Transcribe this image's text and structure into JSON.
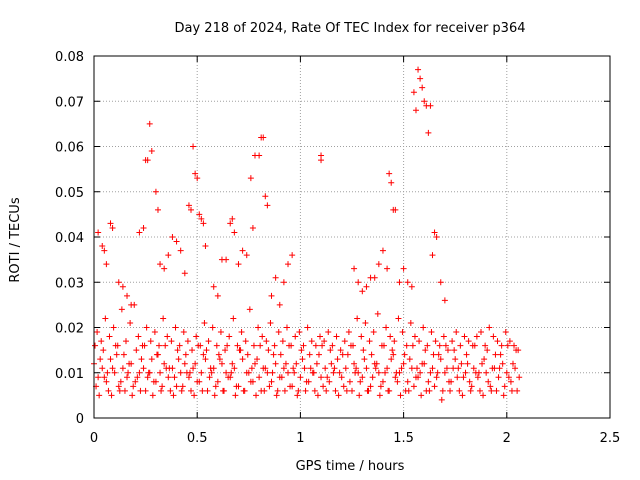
{
  "chart_data": {
    "type": "scatter",
    "title": "Day 218 of 2024, Rate Of TEC Index for receiver p364",
    "xlabel": "GPS time / hours",
    "ylabel": "ROTI / TECUs",
    "xlim": [
      0,
      2.5
    ],
    "ylim": [
      0,
      0.08
    ],
    "xticks": [
      0,
      0.5,
      1,
      1.5,
      2,
      2.5
    ],
    "xtick_labels": [
      "0",
      "0.5",
      "1",
      "1.5",
      "2",
      "2.5"
    ],
    "yticks": [
      0,
      0.01,
      0.02,
      0.03,
      0.04,
      0.05,
      0.06,
      0.07,
      0.08
    ],
    "ytick_labels": [
      "0",
      "0.01",
      "0.02",
      "0.03",
      "0.04",
      "0.05",
      "0.06",
      "0.07",
      "0.08"
    ],
    "grid": true,
    "marker": "+",
    "marker_color": "#ff0000",
    "series": [
      {
        "name": "ROTI",
        "x": [
          0.0,
          0.02,
          0.04,
          0.06,
          0.08,
          0.1,
          0.12,
          0.14,
          0.16,
          0.18,
          0.2,
          0.22,
          0.24,
          0.26,
          0.28,
          0.3,
          0.32,
          0.34,
          0.36,
          0.38,
          0.4,
          0.42,
          0.44,
          0.46,
          0.48,
          0.5,
          0.52,
          0.54,
          0.56,
          0.58,
          0.6,
          0.62,
          0.64,
          0.66,
          0.68,
          0.7,
          0.72,
          0.74,
          0.76,
          0.78,
          0.8,
          0.82,
          0.84,
          0.86,
          0.88,
          0.9,
          0.92,
          0.94,
          0.96,
          0.98,
          1.0,
          1.02,
          1.04,
          1.06,
          1.08,
          1.1,
          1.12,
          1.14,
          1.16,
          1.18,
          1.2,
          1.22,
          1.24,
          1.26,
          1.28,
          1.3,
          1.32,
          1.34,
          1.36,
          1.38,
          1.4,
          1.42,
          1.44,
          1.46,
          1.48,
          1.5,
          1.52,
          1.54,
          1.56,
          1.58,
          1.6,
          1.62,
          1.64,
          1.66,
          1.68,
          1.7,
          1.72,
          1.74,
          1.76,
          1.78,
          1.8,
          1.82,
          1.84,
          1.86,
          1.88,
          1.9,
          1.92,
          1.94,
          1.96,
          1.98,
          2.0,
          2.02,
          2.04,
          2.06,
          0.01,
          0.03,
          0.05,
          0.07,
          0.09,
          0.11,
          0.13,
          0.15,
          0.17,
          0.19,
          0.21,
          0.23,
          0.25,
          0.27,
          0.29,
          0.31,
          0.33,
          0.35,
          0.37,
          0.39,
          0.41,
          0.43,
          0.45,
          0.47,
          0.49,
          0.51,
          0.53,
          0.55,
          0.57,
          0.59,
          0.61,
          0.63,
          0.65,
          0.67,
          0.69,
          0.71,
          0.73,
          0.75,
          0.77,
          0.79,
          0.81,
          0.83,
          0.85,
          0.87,
          0.89,
          0.91,
          0.93,
          0.95,
          0.97,
          0.99,
          1.01,
          1.03,
          1.05,
          1.07,
          1.09,
          1.11,
          1.13,
          1.15,
          1.17,
          1.19,
          1.21,
          1.23,
          1.25,
          1.27,
          1.29,
          1.31,
          1.33,
          1.35,
          1.37,
          1.39,
          1.41,
          1.43,
          1.45,
          1.47,
          1.49,
          1.51,
          1.53,
          1.55,
          1.57,
          1.59,
          1.61,
          1.63,
          1.65,
          1.67,
          1.69,
          1.71,
          1.73,
          1.75,
          1.77,
          1.79,
          1.81,
          1.83,
          1.85,
          1.87,
          1.89,
          1.91,
          1.93,
          1.95,
          1.97,
          1.99,
          2.01,
          2.03,
          2.05,
          0.005,
          0.025,
          0.045,
          0.065,
          0.085,
          0.105,
          0.125,
          0.145,
          0.165,
          0.185,
          0.205,
          0.225,
          0.245,
          0.265,
          0.285,
          0.305,
          0.325,
          0.345,
          0.365,
          0.385,
          0.405,
          0.425,
          0.445,
          0.465,
          0.485,
          0.505,
          0.525,
          0.545,
          0.565,
          0.585,
          0.605,
          0.625,
          0.645,
          0.665,
          0.685,
          0.705,
          0.725,
          0.745,
          0.765,
          0.785,
          0.805,
          0.825,
          0.845,
          0.865,
          0.885,
          0.905,
          0.925,
          0.945,
          0.965,
          0.985,
          1.005,
          1.025,
          1.045,
          1.065,
          1.085,
          1.105,
          1.125,
          1.145,
          1.165,
          1.185,
          1.205,
          1.225,
          1.245,
          1.265,
          1.285,
          1.305,
          1.325,
          1.345,
          1.365,
          1.385,
          1.405,
          1.425,
          1.445,
          1.465,
          1.485,
          1.505,
          1.525,
          1.545,
          1.565,
          1.585,
          1.605,
          1.625,
          1.645,
          1.665,
          1.685,
          1.705,
          1.725,
          1.745,
          1.765,
          1.785,
          1.805,
          1.825,
          1.845,
          1.865,
          1.885,
          1.905,
          1.925,
          1.945,
          1.965,
          1.985,
          2.005,
          2.025,
          2.045,
          0.015,
          0.035,
          0.055,
          0.075,
          0.095,
          0.115,
          0.135,
          0.155,
          0.175,
          0.195,
          0.215,
          0.235,
          0.255,
          0.275,
          0.295,
          0.315,
          0.335,
          0.355,
          0.375,
          0.395,
          0.415,
          0.435,
          0.455,
          0.475,
          0.495,
          0.515,
          0.535,
          0.555,
          0.575,
          0.595,
          0.615,
          0.635,
          0.655,
          0.675,
          0.695,
          0.715,
          0.735,
          0.755,
          0.775,
          0.795,
          0.815,
          0.835,
          0.855,
          0.875,
          0.895,
          0.915,
          0.935,
          0.955,
          0.975,
          0.995,
          1.015,
          1.035,
          1.055,
          1.075,
          1.095,
          1.115,
          1.135,
          1.155,
          1.175,
          1.195,
          1.215,
          1.235,
          1.255,
          1.275,
          1.295,
          1.315,
          1.335,
          1.355,
          1.375,
          1.395,
          1.415,
          1.435,
          1.455,
          1.475,
          1.495,
          1.515,
          1.535,
          1.555,
          1.575,
          1.595,
          1.615,
          1.635,
          1.655,
          1.675,
          1.695,
          1.715,
          1.735,
          1.755,
          1.775,
          1.795,
          1.815,
          1.835,
          1.855,
          1.875,
          1.895,
          1.915,
          1.935,
          1.955,
          1.975,
          1.995,
          2.015,
          2.035,
          2.055,
          0.27,
          0.28,
          0.26,
          0.48,
          0.49,
          0.5,
          0.81,
          0.82,
          0.8,
          0.78,
          1.1,
          1.1,
          1.57,
          1.58,
          1.59,
          1.6,
          1.61,
          1.62,
          1.63,
          1.55,
          1.56,
          1.45,
          1.46,
          1.44,
          1.43,
          0.22,
          0.24,
          0.25,
          0.3,
          0.31,
          0.32,
          0.46,
          0.47,
          0.51,
          0.52,
          0.53,
          0.66,
          0.67,
          0.68,
          0.76,
          0.77,
          0.83,
          0.84,
          0.04,
          0.05,
          0.08,
          0.09,
          0.34,
          0.38,
          0.4,
          0.42,
          0.54,
          0.62,
          0.64,
          0.72,
          0.74,
          0.92,
          0.94,
          0.96,
          1.28,
          1.3,
          1.36,
          1.38,
          1.4,
          1.42,
          1.64,
          1.65,
          1.66,
          1.52,
          1.54,
          0.02,
          0.06,
          0.12,
          0.14,
          0.16,
          0.18,
          0.36,
          0.44,
          0.58,
          0.6,
          0.7,
          0.86,
          0.88,
          0.9,
          1.26,
          1.32,
          1.34,
          1.48,
          1.5,
          1.68,
          1.7
        ],
        "y": [
          0.012,
          0.009,
          0.011,
          0.008,
          0.013,
          0.01,
          0.007,
          0.011,
          0.009,
          0.012,
          0.008,
          0.01,
          0.011,
          0.009,
          0.013,
          0.008,
          0.01,
          0.012,
          0.009,
          0.011,
          0.007,
          0.01,
          0.012,
          0.009,
          0.011,
          0.008,
          0.01,
          0.013,
          0.009,
          0.011,
          0.008,
          0.012,
          0.01,
          0.009,
          0.011,
          0.007,
          0.013,
          0.01,
          0.008,
          0.012,
          0.009,
          0.011,
          0.01,
          0.008,
          0.012,
          0.009,
          0.011,
          0.01,
          0.007,
          0.012,
          0.009,
          0.011,
          0.008,
          0.01,
          0.012,
          0.009,
          0.011,
          0.008,
          0.01,
          0.013,
          0.009,
          0.011,
          0.008,
          0.012,
          0.01,
          0.009,
          0.011,
          0.007,
          0.012,
          0.01,
          0.008,
          0.011,
          0.013,
          0.009,
          0.01,
          0.012,
          0.008,
          0.011,
          0.009,
          0.01,
          0.012,
          0.008,
          0.011,
          0.009,
          0.013,
          0.01,
          0.008,
          0.011,
          0.009,
          0.012,
          0.01,
          0.008,
          0.011,
          0.009,
          0.012,
          0.01,
          0.007,
          0.011,
          0.009,
          0.012,
          0.01,
          0.008,
          0.011,
          0.009,
          0.007,
          0.013,
          0.009,
          0.006,
          0.011,
          0.014,
          0.008,
          0.006,
          0.012,
          0.007,
          0.009,
          0.013,
          0.006,
          0.01,
          0.008,
          0.014,
          0.007,
          0.011,
          0.006,
          0.009,
          0.013,
          0.007,
          0.01,
          0.006,
          0.012,
          0.008,
          0.014,
          0.006,
          0.01,
          0.007,
          0.013,
          0.006,
          0.009,
          0.012,
          0.007,
          0.015,
          0.006,
          0.01,
          0.008,
          0.013,
          0.006,
          0.011,
          0.007,
          0.014,
          0.006,
          0.009,
          0.012,
          0.007,
          0.01,
          0.006,
          0.013,
          0.008,
          0.011,
          0.006,
          0.014,
          0.007,
          0.009,
          0.012,
          0.006,
          0.01,
          0.007,
          0.014,
          0.006,
          0.011,
          0.008,
          0.013,
          0.006,
          0.009,
          0.012,
          0.007,
          0.01,
          0.006,
          0.014,
          0.008,
          0.011,
          0.006,
          0.013,
          0.007,
          0.009,
          0.012,
          0.006,
          0.01,
          0.007,
          0.014,
          0.006,
          0.011,
          0.008,
          0.013,
          0.006,
          0.009,
          0.012,
          0.007,
          0.01,
          0.006,
          0.013,
          0.008,
          0.011,
          0.006,
          0.014,
          0.007,
          0.009,
          0.012,
          0.006,
          0.016,
          0.005,
          0.015,
          0.01,
          0.005,
          0.016,
          0.006,
          0.014,
          0.01,
          0.005,
          0.015,
          0.006,
          0.016,
          0.01,
          0.005,
          0.014,
          0.006,
          0.016,
          0.011,
          0.005,
          0.015,
          0.006,
          0.014,
          0.01,
          0.005,
          0.016,
          0.006,
          0.015,
          0.011,
          0.005,
          0.014,
          0.006,
          0.016,
          0.01,
          0.005,
          0.015,
          0.006,
          0.014,
          0.011,
          0.005,
          0.016,
          0.006,
          0.015,
          0.01,
          0.005,
          0.014,
          0.006,
          0.016,
          0.011,
          0.005,
          0.015,
          0.006,
          0.014,
          0.01,
          0.005,
          0.016,
          0.006,
          0.015,
          0.011,
          0.005,
          0.014,
          0.006,
          0.016,
          0.01,
          0.005,
          0.015,
          0.006,
          0.014,
          0.011,
          0.005,
          0.016,
          0.006,
          0.015,
          0.01,
          0.005,
          0.014,
          0.006,
          0.016,
          0.011,
          0.005,
          0.015,
          0.006,
          0.014,
          0.01,
          0.004,
          0.016,
          0.006,
          0.015,
          0.011,
          0.005,
          0.014,
          0.006,
          0.016,
          0.01,
          0.005,
          0.015,
          0.006,
          0.014,
          0.011,
          0.005,
          0.016,
          0.006,
          0.015,
          0.019,
          0.017,
          0.022,
          0.018,
          0.02,
          0.016,
          0.024,
          0.017,
          0.021,
          0.025,
          0.018,
          0.016,
          0.02,
          0.017,
          0.019,
          0.016,
          0.022,
          0.018,
          0.017,
          0.02,
          0.016,
          0.019,
          0.017,
          0.015,
          0.018,
          0.016,
          0.021,
          0.017,
          0.02,
          0.016,
          0.019,
          0.015,
          0.018,
          0.022,
          0.016,
          0.019,
          0.017,
          0.024,
          0.016,
          0.02,
          0.018,
          0.017,
          0.021,
          0.016,
          0.019,
          0.017,
          0.02,
          0.016,
          0.018,
          0.019,
          0.016,
          0.02,
          0.017,
          0.016,
          0.018,
          0.017,
          0.019,
          0.016,
          0.018,
          0.015,
          0.017,
          0.019,
          0.016,
          0.022,
          0.018,
          0.021,
          0.017,
          0.019,
          0.023,
          0.016,
          0.02,
          0.018,
          0.017,
          0.022,
          0.019,
          0.016,
          0.021,
          0.018,
          0.017,
          0.02,
          0.016,
          0.019,
          0.017,
          0.016,
          0.018,
          0.015,
          0.017,
          0.019,
          0.016,
          0.018,
          0.017,
          0.016,
          0.018,
          0.019,
          0.016,
          0.02,
          0.018,
          0.017,
          0.016,
          0.019,
          0.017,
          0.016,
          0.015,
          0.065,
          0.059,
          0.057,
          0.06,
          0.054,
          0.053,
          0.062,
          0.062,
          0.058,
          0.058,
          0.058,
          0.057,
          0.077,
          0.075,
          0.073,
          0.07,
          0.069,
          0.063,
          0.069,
          0.072,
          0.068,
          0.046,
          0.046,
          0.052,
          0.054,
          0.041,
          0.042,
          0.057,
          0.05,
          0.046,
          0.034,
          0.047,
          0.046,
          0.045,
          0.044,
          0.043,
          0.043,
          0.044,
          0.041,
          0.053,
          0.042,
          0.049,
          0.047,
          0.038,
          0.037,
          0.043,
          0.042,
          0.033,
          0.04,
          0.039,
          0.037,
          0.038,
          0.035,
          0.035,
          0.037,
          0.036,
          0.03,
          0.034,
          0.036,
          0.03,
          0.028,
          0.031,
          0.034,
          0.037,
          0.033,
          0.036,
          0.041,
          0.04,
          0.03,
          0.029,
          0.041,
          0.034,
          0.03,
          0.029,
          0.027,
          0.025,
          0.036,
          0.032,
          0.029,
          0.027,
          0.034,
          0.027,
          0.031,
          0.025,
          0.033,
          0.029,
          0.031,
          0.03,
          0.033,
          0.03,
          0.026
        ]
      }
    ]
  }
}
